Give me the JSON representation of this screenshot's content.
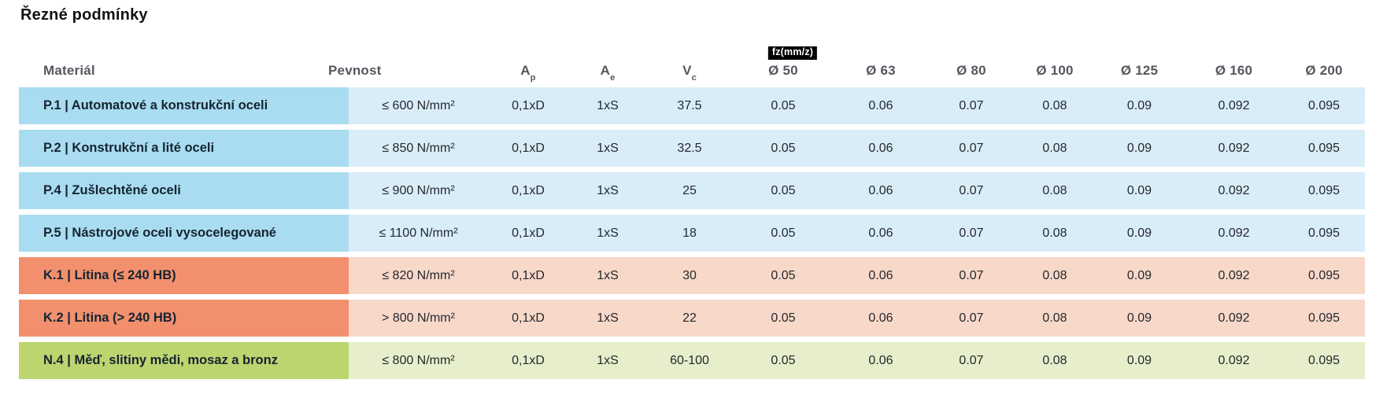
{
  "page": {
    "title": "Řezné podmínky"
  },
  "colors": {
    "group_p_label_bg": "#a9dcf1",
    "group_p_cell_bg": "#d9edf8",
    "group_k_label_bg": "#f2906e",
    "group_k_cell_bg": "#f8d8c9",
    "group_n_label_bg": "#bcd56f",
    "group_n_cell_bg": "#e7eecb",
    "header_text": "#54585e",
    "badge_bg": "#000000",
    "badge_text": "#ffffff"
  },
  "chart_data": {
    "type": "table",
    "title": "Řezné podmínky",
    "fz_label": "fz(mm/z)",
    "columns": [
      {
        "key": "material",
        "label": "Materiál"
      },
      {
        "key": "pevnost",
        "label": "Pevnost"
      },
      {
        "key": "ap",
        "label": "A",
        "sub": "p"
      },
      {
        "key": "ae",
        "label": "A",
        "sub": "e"
      },
      {
        "key": "vc",
        "label": "V",
        "sub": "c"
      },
      {
        "key": "d50",
        "label": "Ø 50"
      },
      {
        "key": "d63",
        "label": "Ø 63"
      },
      {
        "key": "d80",
        "label": "Ø 80"
      },
      {
        "key": "d100",
        "label": "Ø 100"
      },
      {
        "key": "d125",
        "label": "Ø 125"
      },
      {
        "key": "d160",
        "label": "Ø 160"
      },
      {
        "key": "d200",
        "label": "Ø 200"
      }
    ],
    "rows": [
      {
        "group": "p",
        "material": "P.1 | Automatové a konstrukční oceli",
        "values": [
          "≤ 600 N/mm²",
          "0,1xD",
          "1xS",
          "37.5",
          "0.05",
          "0.06",
          "0.07",
          "0.08",
          "0.09",
          "0.092",
          "0.095"
        ]
      },
      {
        "group": "p",
        "material": "P.2 | Konstrukční a lité oceli",
        "values": [
          "≤ 850 N/mm²",
          "0,1xD",
          "1xS",
          "32.5",
          "0.05",
          "0.06",
          "0.07",
          "0.08",
          "0.09",
          "0.092",
          "0.095"
        ]
      },
      {
        "group": "p",
        "material": "P.4 | Zušlechtěné oceli",
        "values": [
          "≤ 900 N/mm²",
          "0,1xD",
          "1xS",
          "25",
          "0.05",
          "0.06",
          "0.07",
          "0.08",
          "0.09",
          "0.092",
          "0.095"
        ]
      },
      {
        "group": "p",
        "material": "P.5 | Nástrojové oceli vysocelegované",
        "values": [
          "≤ 1100 N/mm²",
          "0,1xD",
          "1xS",
          "18",
          "0.05",
          "0.06",
          "0.07",
          "0.08",
          "0.09",
          "0.092",
          "0.095"
        ]
      },
      {
        "group": "k",
        "material": "K.1 | Litina (≤ 240 HB)",
        "values": [
          "≤ 820 N/mm²",
          "0,1xD",
          "1xS",
          "30",
          "0.05",
          "0.06",
          "0.07",
          "0.08",
          "0.09",
          "0.092",
          "0.095"
        ]
      },
      {
        "group": "k",
        "material": "K.2 | Litina (> 240 HB)",
        "values": [
          "> 800 N/mm²",
          "0,1xD",
          "1xS",
          "22",
          "0.05",
          "0.06",
          "0.07",
          "0.08",
          "0.09",
          "0.092",
          "0.095"
        ]
      },
      {
        "group": "n",
        "material": "N.4 | Měď, slitiny mědi, mosaz a bronz",
        "values": [
          "≤ 800 N/mm²",
          "0,1xD",
          "1xS",
          "60-100",
          "0.05",
          "0.06",
          "0.07",
          "0.08",
          "0.09",
          "0.092",
          "0.095"
        ]
      }
    ]
  }
}
